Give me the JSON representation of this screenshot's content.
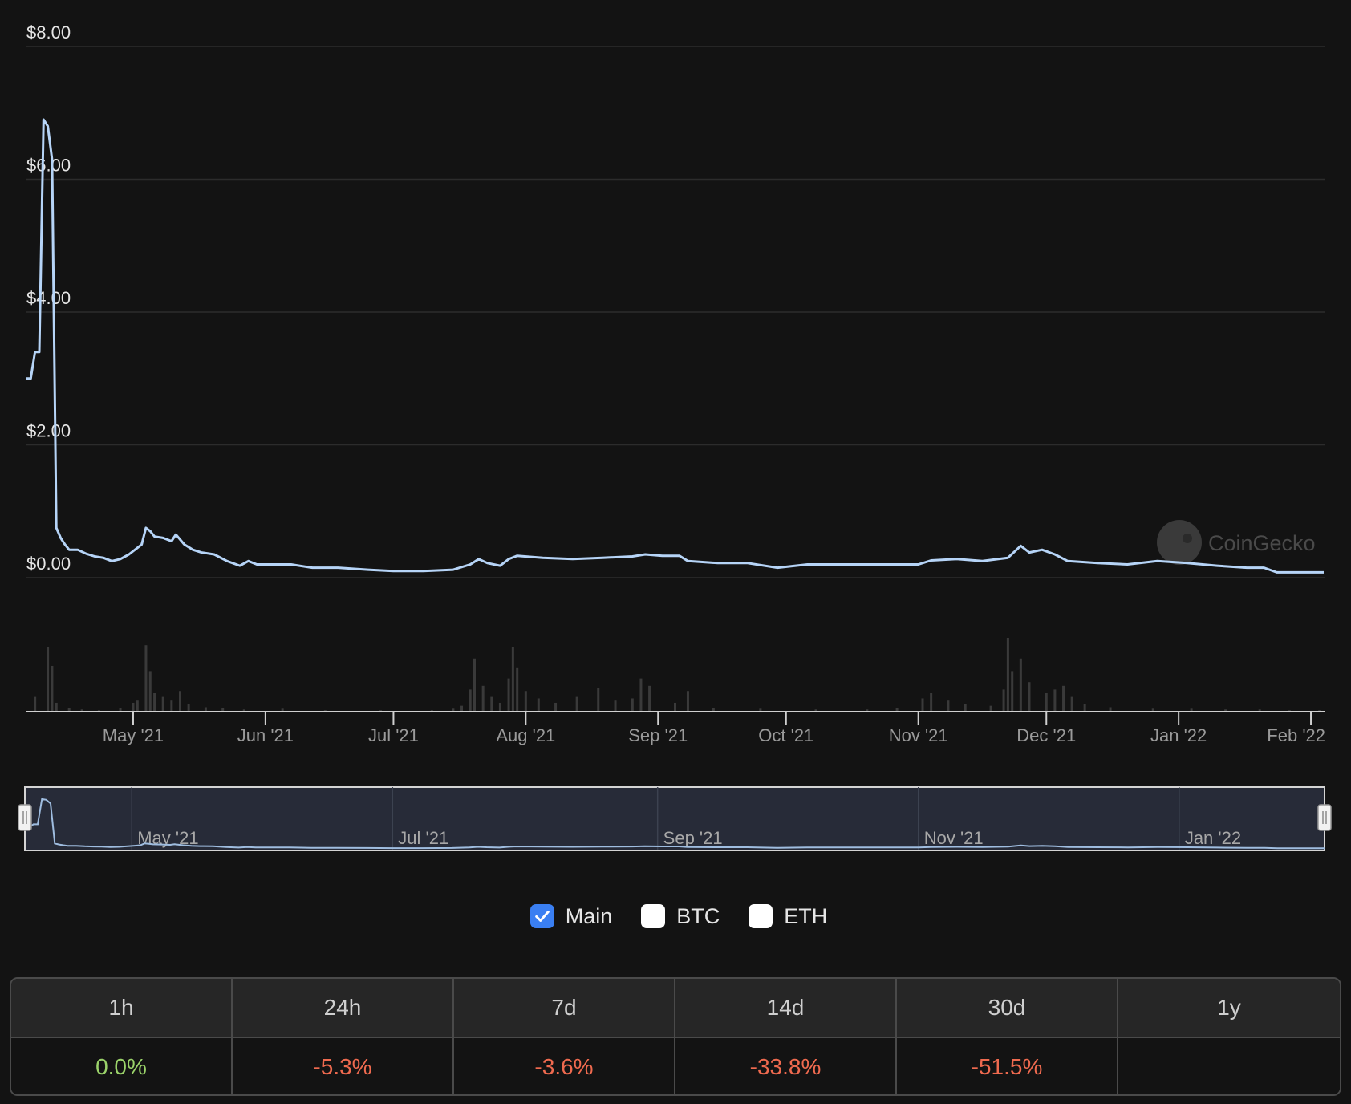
{
  "chart_data": {
    "type": "line",
    "title": "",
    "ylabel": "",
    "xlabel": "",
    "ylim": [
      0,
      8
    ],
    "xlim": [
      "2021-04-06",
      "2022-02-04"
    ],
    "y_ticks": [
      "$0.00",
      "$2.00",
      "$4.00",
      "$6.00",
      "$8.00"
    ],
    "y_tick_values": [
      0,
      2,
      4,
      6,
      8
    ],
    "x_ticks": [
      {
        "label": "May '21",
        "date": "2021-05-01"
      },
      {
        "label": "Jun '21",
        "date": "2021-06-01"
      },
      {
        "label": "Jul '21",
        "date": "2021-07-01"
      },
      {
        "label": "Aug '21",
        "date": "2021-08-01"
      },
      {
        "label": "Sep '21",
        "date": "2021-09-01"
      },
      {
        "label": "Oct '21",
        "date": "2021-10-01"
      },
      {
        "label": "Nov '21",
        "date": "2021-11-01"
      },
      {
        "label": "Dec '21",
        "date": "2021-12-01"
      },
      {
        "label": "Jan '22",
        "date": "2022-01-01"
      },
      {
        "label": "Feb '22",
        "date": "2022-02-01"
      }
    ],
    "grid": true,
    "line_color": "#b6d4f7",
    "series": [
      {
        "values": [
          [
            "2021-04-06",
            3.0
          ],
          [
            "2021-04-07",
            3.0
          ],
          [
            "2021-04-08",
            3.4
          ],
          [
            "2021-04-09",
            3.4
          ],
          [
            "2021-04-10",
            6.9
          ],
          [
            "2021-04-11",
            6.8
          ],
          [
            "2021-04-12",
            6.3
          ],
          [
            "2021-04-13",
            0.75
          ],
          [
            "2021-04-14",
            0.6
          ],
          [
            "2021-04-15",
            0.5
          ],
          [
            "2021-04-16",
            0.42
          ],
          [
            "2021-04-18",
            0.42
          ],
          [
            "2021-04-20",
            0.36
          ],
          [
            "2021-04-22",
            0.32
          ],
          [
            "2021-04-24",
            0.3
          ],
          [
            "2021-04-26",
            0.25
          ],
          [
            "2021-04-28",
            0.28
          ],
          [
            "2021-04-30",
            0.35
          ],
          [
            "2021-05-02",
            0.45
          ],
          [
            "2021-05-03",
            0.5
          ],
          [
            "2021-05-04",
            0.75
          ],
          [
            "2021-05-05",
            0.7
          ],
          [
            "2021-05-06",
            0.62
          ],
          [
            "2021-05-08",
            0.6
          ],
          [
            "2021-05-10",
            0.55
          ],
          [
            "2021-05-11",
            0.65
          ],
          [
            "2021-05-13",
            0.5
          ],
          [
            "2021-05-15",
            0.42
          ],
          [
            "2021-05-17",
            0.38
          ],
          [
            "2021-05-20",
            0.35
          ],
          [
            "2021-05-23",
            0.25
          ],
          [
            "2021-05-26",
            0.18
          ],
          [
            "2021-05-28",
            0.25
          ],
          [
            "2021-05-30",
            0.2
          ],
          [
            "2021-06-03",
            0.2
          ],
          [
            "2021-06-07",
            0.2
          ],
          [
            "2021-06-12",
            0.15
          ],
          [
            "2021-06-18",
            0.15
          ],
          [
            "2021-06-25",
            0.12
          ],
          [
            "2021-07-01",
            0.1
          ],
          [
            "2021-07-08",
            0.1
          ],
          [
            "2021-07-15",
            0.12
          ],
          [
            "2021-07-19",
            0.2
          ],
          [
            "2021-07-21",
            0.28
          ],
          [
            "2021-07-23",
            0.22
          ],
          [
            "2021-07-26",
            0.18
          ],
          [
            "2021-07-28",
            0.28
          ],
          [
            "2021-07-30",
            0.33
          ],
          [
            "2021-08-05",
            0.3
          ],
          [
            "2021-08-12",
            0.28
          ],
          [
            "2021-08-19",
            0.3
          ],
          [
            "2021-08-26",
            0.32
          ],
          [
            "2021-08-29",
            0.35
          ],
          [
            "2021-09-02",
            0.33
          ],
          [
            "2021-09-06",
            0.33
          ],
          [
            "2021-09-08",
            0.25
          ],
          [
            "2021-09-15",
            0.22
          ],
          [
            "2021-09-22",
            0.22
          ],
          [
            "2021-09-29",
            0.15
          ],
          [
            "2021-10-06",
            0.2
          ],
          [
            "2021-10-13",
            0.2
          ],
          [
            "2021-10-20",
            0.2
          ],
          [
            "2021-10-27",
            0.2
          ],
          [
            "2021-11-01",
            0.2
          ],
          [
            "2021-11-04",
            0.26
          ],
          [
            "2021-11-10",
            0.28
          ],
          [
            "2021-11-16",
            0.25
          ],
          [
            "2021-11-22",
            0.3
          ],
          [
            "2021-11-25",
            0.48
          ],
          [
            "2021-11-27",
            0.38
          ],
          [
            "2021-11-30",
            0.42
          ],
          [
            "2021-12-03",
            0.35
          ],
          [
            "2021-12-06",
            0.25
          ],
          [
            "2021-12-13",
            0.22
          ],
          [
            "2021-12-20",
            0.2
          ],
          [
            "2021-12-27",
            0.25
          ],
          [
            "2022-01-03",
            0.22
          ],
          [
            "2022-01-10",
            0.18
          ],
          [
            "2022-01-17",
            0.15
          ],
          [
            "2022-01-21",
            0.15
          ],
          [
            "2022-01-24",
            0.08
          ],
          [
            "2022-01-29",
            0.08
          ],
          [
            "2022-02-04",
            0.08
          ]
        ]
      }
    ],
    "volume": [
      [
        "2021-04-08",
        0.2
      ],
      [
        "2021-04-11",
        0.88
      ],
      [
        "2021-04-12",
        0.62
      ],
      [
        "2021-04-13",
        0.12
      ],
      [
        "2021-04-16",
        0.05
      ],
      [
        "2021-04-19",
        0.03
      ],
      [
        "2021-04-23",
        0.02
      ],
      [
        "2021-04-28",
        0.05
      ],
      [
        "2021-05-01",
        0.12
      ],
      [
        "2021-05-02",
        0.15
      ],
      [
        "2021-05-04",
        0.9
      ],
      [
        "2021-05-05",
        0.55
      ],
      [
        "2021-05-06",
        0.25
      ],
      [
        "2021-05-08",
        0.2
      ],
      [
        "2021-05-10",
        0.15
      ],
      [
        "2021-05-12",
        0.28
      ],
      [
        "2021-05-14",
        0.1
      ],
      [
        "2021-05-18",
        0.06
      ],
      [
        "2021-05-22",
        0.05
      ],
      [
        "2021-05-27",
        0.03
      ],
      [
        "2021-06-05",
        0.04
      ],
      [
        "2021-06-15",
        0.02
      ],
      [
        "2021-06-28",
        0.02
      ],
      [
        "2021-07-10",
        0.02
      ],
      [
        "2021-07-15",
        0.04
      ],
      [
        "2021-07-17",
        0.08
      ],
      [
        "2021-07-19",
        0.3
      ],
      [
        "2021-07-20",
        0.72
      ],
      [
        "2021-07-22",
        0.35
      ],
      [
        "2021-07-24",
        0.2
      ],
      [
        "2021-07-26",
        0.12
      ],
      [
        "2021-07-28",
        0.45
      ],
      [
        "2021-07-29",
        0.88
      ],
      [
        "2021-07-30",
        0.6
      ],
      [
        "2021-08-01",
        0.28
      ],
      [
        "2021-08-04",
        0.18
      ],
      [
        "2021-08-08",
        0.12
      ],
      [
        "2021-08-13",
        0.2
      ],
      [
        "2021-08-18",
        0.32
      ],
      [
        "2021-08-22",
        0.15
      ],
      [
        "2021-08-26",
        0.18
      ],
      [
        "2021-08-28",
        0.45
      ],
      [
        "2021-08-30",
        0.35
      ],
      [
        "2021-09-05",
        0.12
      ],
      [
        "2021-09-08",
        0.28
      ],
      [
        "2021-09-14",
        0.05
      ],
      [
        "2021-09-25",
        0.04
      ],
      [
        "2021-10-08",
        0.03
      ],
      [
        "2021-10-20",
        0.03
      ],
      [
        "2021-10-27",
        0.05
      ],
      [
        "2021-11-02",
        0.18
      ],
      [
        "2021-11-04",
        0.25
      ],
      [
        "2021-11-08",
        0.15
      ],
      [
        "2021-11-12",
        0.1
      ],
      [
        "2021-11-18",
        0.08
      ],
      [
        "2021-11-21",
        0.3
      ],
      [
        "2021-11-22",
        1.0
      ],
      [
        "2021-11-23",
        0.55
      ],
      [
        "2021-11-25",
        0.72
      ],
      [
        "2021-11-27",
        0.4
      ],
      [
        "2021-12-01",
        0.25
      ],
      [
        "2021-12-03",
        0.3
      ],
      [
        "2021-12-05",
        0.35
      ],
      [
        "2021-12-07",
        0.2
      ],
      [
        "2021-12-10",
        0.1
      ],
      [
        "2021-12-16",
        0.06
      ],
      [
        "2021-12-26",
        0.04
      ],
      [
        "2022-01-04",
        0.04
      ],
      [
        "2022-01-12",
        0.03
      ],
      [
        "2022-01-20",
        0.03
      ],
      [
        "2022-01-27",
        0.02
      ],
      [
        "2022-02-03",
        0.02
      ]
    ],
    "navigator_ticks": [
      {
        "label": "May '21",
        "date": "2021-05-01"
      },
      {
        "label": "Jul '21",
        "date": "2021-07-01"
      },
      {
        "label": "Sep '21",
        "date": "2021-09-01"
      },
      {
        "label": "Nov '21",
        "date": "2021-11-01"
      },
      {
        "label": "Jan '22",
        "date": "2022-01-01"
      }
    ]
  },
  "watermark": "CoinGecko",
  "toggles": [
    {
      "label": "Main",
      "checked": true
    },
    {
      "label": "BTC",
      "checked": false
    },
    {
      "label": "ETH",
      "checked": false
    }
  ],
  "performance": {
    "headers": [
      "1h",
      "24h",
      "7d",
      "14d",
      "30d",
      "1y"
    ],
    "values": [
      "0.0%",
      "-5.3%",
      "-3.6%",
      "-33.8%",
      "-51.5%",
      ""
    ],
    "positive_color": "#9bd36a",
    "negative_color": "#ef6a4f"
  }
}
